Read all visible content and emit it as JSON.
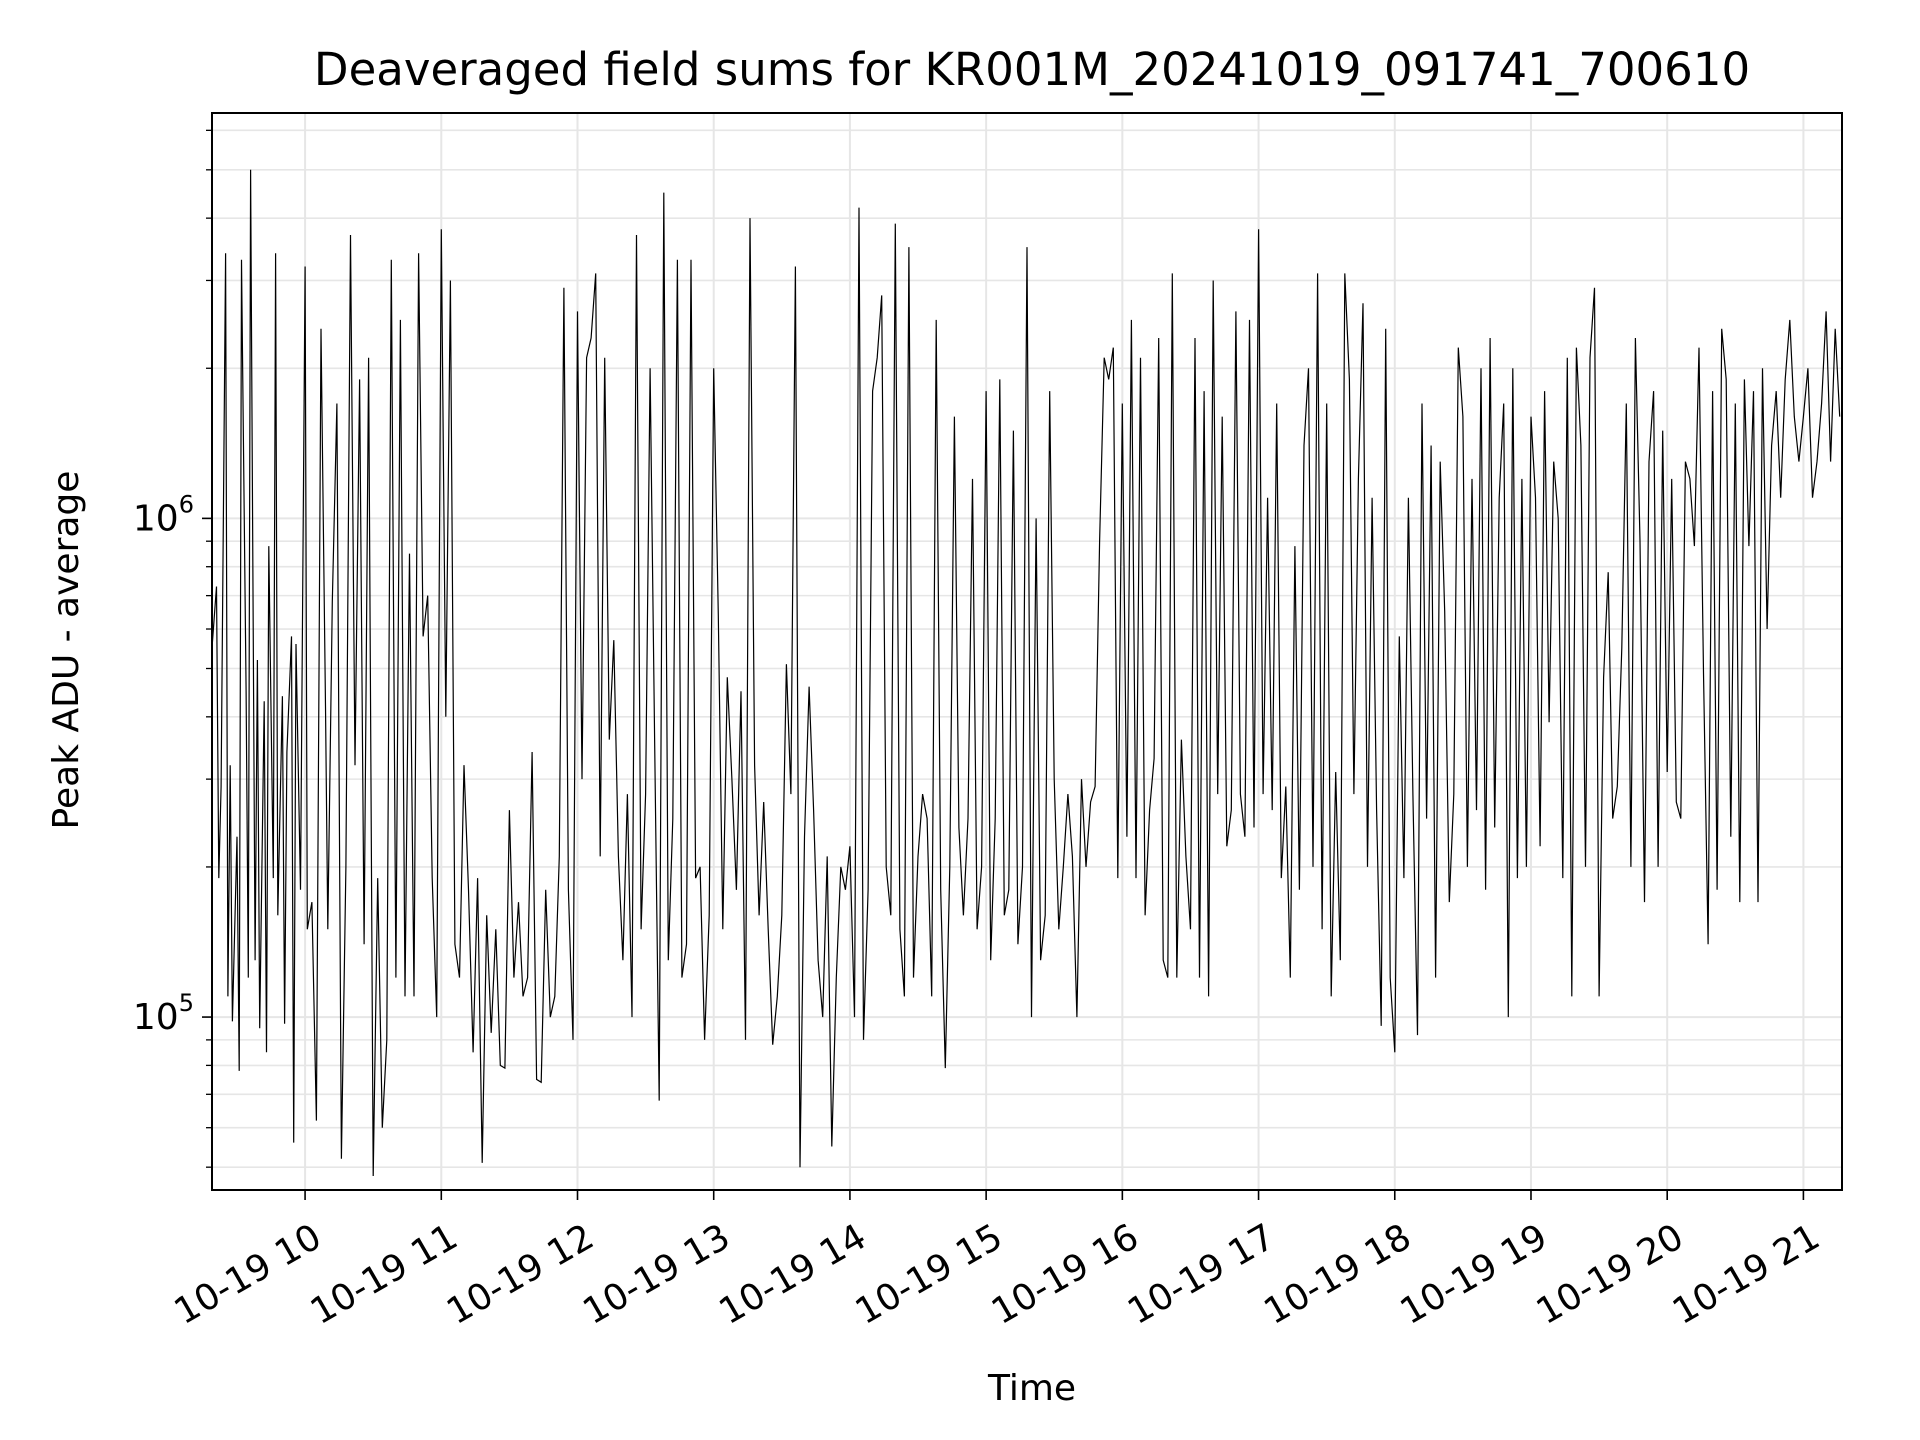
{
  "chart_data": {
    "type": "line",
    "title": "Deaveraged field sums for KR001M_20241019_091741_700610",
    "xlabel": "Time",
    "ylabel": "Peak ADU - average",
    "y_scale": "log",
    "grid": true,
    "legend": "none",
    "line_color": "#000000",
    "grid_color": "#e6e6e6",
    "xlim": [
      "2024-10-19 09:19",
      "2024-10-19 21:17"
    ],
    "ylim": [
      45000,
      6500000
    ],
    "x_ticks": [
      {
        "value": "2024-10-19 10:00",
        "label": "10-19 10"
      },
      {
        "value": "2024-10-19 11:00",
        "label": "10-19 11"
      },
      {
        "value": "2024-10-19 12:00",
        "label": "10-19 12"
      },
      {
        "value": "2024-10-19 13:00",
        "label": "10-19 13"
      },
      {
        "value": "2024-10-19 14:00",
        "label": "10-19 14"
      },
      {
        "value": "2024-10-19 15:00",
        "label": "10-19 15"
      },
      {
        "value": "2024-10-19 16:00",
        "label": "10-19 16"
      },
      {
        "value": "2024-10-19 17:00",
        "label": "10-19 17"
      },
      {
        "value": "2024-10-19 18:00",
        "label": "10-19 18"
      },
      {
        "value": "2024-10-19 19:00",
        "label": "10-19 19"
      },
      {
        "value": "2024-10-19 20:00",
        "label": "10-19 20"
      },
      {
        "value": "2024-10-19 21:00",
        "label": "10-19 21"
      }
    ],
    "y_ticks": [
      {
        "value": 100000,
        "base": "10",
        "exp": "5"
      },
      {
        "value": 1000000,
        "base": "10",
        "exp": "6"
      }
    ],
    "series": [
      {
        "x": [
          "2024-10-19 09:19",
          "2024-10-19 09:21",
          "2024-10-19 09:22",
          "2024-10-19 09:23",
          "2024-10-19 09:25",
          "2024-10-19 09:26",
          "2024-10-19 09:27",
          "2024-10-19 09:28",
          "2024-10-19 09:30",
          "2024-10-19 09:31",
          "2024-10-19 09:32",
          "2024-10-19 09:34",
          "2024-10-19 09:35",
          "2024-10-19 09:36",
          "2024-10-19 09:38",
          "2024-10-19 09:39",
          "2024-10-19 09:40",
          "2024-10-19 09:42",
          "2024-10-19 09:43",
          "2024-10-19 09:44",
          "2024-10-19 09:46",
          "2024-10-19 09:47",
          "2024-10-19 09:48",
          "2024-10-19 09:50",
          "2024-10-19 09:51",
          "2024-10-19 09:52",
          "2024-10-19 09:54",
          "2024-10-19 09:55",
          "2024-10-19 09:56",
          "2024-10-19 09:58",
          "2024-10-19 10:00",
          "2024-10-19 10:01",
          "2024-10-19 10:03",
          "2024-10-19 10:05",
          "2024-10-19 10:07",
          "2024-10-19 10:09",
          "2024-10-19 10:10",
          "2024-10-19 10:12",
          "2024-10-19 10:14",
          "2024-10-19 10:16",
          "2024-10-19 10:18",
          "2024-10-19 10:20",
          "2024-10-19 10:22",
          "2024-10-19 10:24",
          "2024-10-19 10:26",
          "2024-10-19 10:28",
          "2024-10-19 10:30",
          "2024-10-19 10:32",
          "2024-10-19 10:34",
          "2024-10-19 10:36",
          "2024-10-19 10:38",
          "2024-10-19 10:40",
          "2024-10-19 10:42",
          "2024-10-19 10:44",
          "2024-10-19 10:46",
          "2024-10-19 10:48",
          "2024-10-19 10:50",
          "2024-10-19 10:52",
          "2024-10-19 10:54",
          "2024-10-19 10:56",
          "2024-10-19 10:58",
          "2024-10-19 11:00",
          "2024-10-19 11:02",
          "2024-10-19 11:04",
          "2024-10-19 11:06",
          "2024-10-19 11:08",
          "2024-10-19 11:10",
          "2024-10-19 11:12",
          "2024-10-19 11:14",
          "2024-10-19 11:16",
          "2024-10-19 11:18",
          "2024-10-19 11:20",
          "2024-10-19 11:22",
          "2024-10-19 11:24",
          "2024-10-19 11:26",
          "2024-10-19 11:28",
          "2024-10-19 11:30",
          "2024-10-19 11:32",
          "2024-10-19 11:34",
          "2024-10-19 11:36",
          "2024-10-19 11:38",
          "2024-10-19 11:40",
          "2024-10-19 11:42",
          "2024-10-19 11:44",
          "2024-10-19 11:46",
          "2024-10-19 11:48",
          "2024-10-19 11:50",
          "2024-10-19 11:52",
          "2024-10-19 11:54",
          "2024-10-19 11:56",
          "2024-10-19 11:58",
          "2024-10-19 12:00",
          "2024-10-19 12:02",
          "2024-10-19 12:04",
          "2024-10-19 12:06",
          "2024-10-19 12:08",
          "2024-10-19 12:10",
          "2024-10-19 12:12",
          "2024-10-19 12:14",
          "2024-10-19 12:16",
          "2024-10-19 12:18",
          "2024-10-19 12:20",
          "2024-10-19 12:22",
          "2024-10-19 12:24",
          "2024-10-19 12:26",
          "2024-10-19 12:28",
          "2024-10-19 12:30",
          "2024-10-19 12:32",
          "2024-10-19 12:34",
          "2024-10-19 12:36",
          "2024-10-19 12:38",
          "2024-10-19 12:40",
          "2024-10-19 12:42",
          "2024-10-19 12:44",
          "2024-10-19 12:46",
          "2024-10-19 12:48",
          "2024-10-19 12:50",
          "2024-10-19 12:52",
          "2024-10-19 12:54",
          "2024-10-19 12:56",
          "2024-10-19 12:58",
          "2024-10-19 13:00",
          "2024-10-19 13:02",
          "2024-10-19 13:04",
          "2024-10-19 13:06",
          "2024-10-19 13:08",
          "2024-10-19 13:10",
          "2024-10-19 13:12",
          "2024-10-19 13:14",
          "2024-10-19 13:16",
          "2024-10-19 13:18",
          "2024-10-19 13:20",
          "2024-10-19 13:22",
          "2024-10-19 13:24",
          "2024-10-19 13:26",
          "2024-10-19 13:28",
          "2024-10-19 13:30",
          "2024-10-19 13:32",
          "2024-10-19 13:34",
          "2024-10-19 13:36",
          "2024-10-19 13:38",
          "2024-10-19 13:40",
          "2024-10-19 13:42",
          "2024-10-19 13:44",
          "2024-10-19 13:46",
          "2024-10-19 13:48",
          "2024-10-19 13:50",
          "2024-10-19 13:52",
          "2024-10-19 13:54",
          "2024-10-19 13:56",
          "2024-10-19 13:58",
          "2024-10-19 14:00",
          "2024-10-19 14:02",
          "2024-10-19 14:04",
          "2024-10-19 14:06",
          "2024-10-19 14:08",
          "2024-10-19 14:10",
          "2024-10-19 14:12",
          "2024-10-19 14:14",
          "2024-10-19 14:16",
          "2024-10-19 14:18",
          "2024-10-19 14:20",
          "2024-10-19 14:22",
          "2024-10-19 14:24",
          "2024-10-19 14:26",
          "2024-10-19 14:28",
          "2024-10-19 14:30",
          "2024-10-19 14:32",
          "2024-10-19 14:34",
          "2024-10-19 14:36",
          "2024-10-19 14:38",
          "2024-10-19 14:40",
          "2024-10-19 14:42",
          "2024-10-19 14:44",
          "2024-10-19 14:46",
          "2024-10-19 14:48",
          "2024-10-19 14:50",
          "2024-10-19 14:52",
          "2024-10-19 14:54",
          "2024-10-19 14:56",
          "2024-10-19 14:58",
          "2024-10-19 15:00",
          "2024-10-19 15:02",
          "2024-10-19 15:04",
          "2024-10-19 15:06",
          "2024-10-19 15:08",
          "2024-10-19 15:10",
          "2024-10-19 15:12",
          "2024-10-19 15:14",
          "2024-10-19 15:16",
          "2024-10-19 15:18",
          "2024-10-19 15:20",
          "2024-10-19 15:22",
          "2024-10-19 15:24",
          "2024-10-19 15:26",
          "2024-10-19 15:28",
          "2024-10-19 15:30",
          "2024-10-19 15:32",
          "2024-10-19 15:34",
          "2024-10-19 15:36",
          "2024-10-19 15:38",
          "2024-10-19 15:40",
          "2024-10-19 15:42",
          "2024-10-19 15:44",
          "2024-10-19 15:46",
          "2024-10-19 15:48",
          "2024-10-19 15:50",
          "2024-10-19 15:52",
          "2024-10-19 15:54",
          "2024-10-19 15:56",
          "2024-10-19 15:58",
          "2024-10-19 16:00",
          "2024-10-19 16:02",
          "2024-10-19 16:04",
          "2024-10-19 16:06",
          "2024-10-19 16:08",
          "2024-10-19 16:10",
          "2024-10-19 16:12",
          "2024-10-19 16:14",
          "2024-10-19 16:16",
          "2024-10-19 16:18",
          "2024-10-19 16:20",
          "2024-10-19 16:22",
          "2024-10-19 16:24",
          "2024-10-19 16:26",
          "2024-10-19 16:28",
          "2024-10-19 16:30",
          "2024-10-19 16:32",
          "2024-10-19 16:34",
          "2024-10-19 16:36",
          "2024-10-19 16:38",
          "2024-10-19 16:40",
          "2024-10-19 16:42",
          "2024-10-19 16:44",
          "2024-10-19 16:46",
          "2024-10-19 16:48",
          "2024-10-19 16:50",
          "2024-10-19 16:52",
          "2024-10-19 16:54",
          "2024-10-19 16:56",
          "2024-10-19 16:58",
          "2024-10-19 17:00",
          "2024-10-19 17:02",
          "2024-10-19 17:04",
          "2024-10-19 17:06",
          "2024-10-19 17:08",
          "2024-10-19 17:10",
          "2024-10-19 17:12",
          "2024-10-19 17:14",
          "2024-10-19 17:16",
          "2024-10-19 17:18",
          "2024-10-19 17:20",
          "2024-10-19 17:22",
          "2024-10-19 17:24",
          "2024-10-19 17:26",
          "2024-10-19 17:28",
          "2024-10-19 17:30",
          "2024-10-19 17:32",
          "2024-10-19 17:34",
          "2024-10-19 17:36",
          "2024-10-19 17:38",
          "2024-10-19 17:40",
          "2024-10-19 17:42",
          "2024-10-19 17:44",
          "2024-10-19 17:46",
          "2024-10-19 17:48",
          "2024-10-19 17:50",
          "2024-10-19 17:52",
          "2024-10-19 17:54",
          "2024-10-19 17:56",
          "2024-10-19 17:58",
          "2024-10-19 18:00",
          "2024-10-19 18:02",
          "2024-10-19 18:04",
          "2024-10-19 18:06",
          "2024-10-19 18:08",
          "2024-10-19 18:10",
          "2024-10-19 18:12",
          "2024-10-19 18:14",
          "2024-10-19 18:16",
          "2024-10-19 18:18",
          "2024-10-19 18:20",
          "2024-10-19 18:22",
          "2024-10-19 18:24",
          "2024-10-19 18:26",
          "2024-10-19 18:28",
          "2024-10-19 18:30",
          "2024-10-19 18:32",
          "2024-10-19 18:34",
          "2024-10-19 18:36",
          "2024-10-19 18:38",
          "2024-10-19 18:40",
          "2024-10-19 18:42",
          "2024-10-19 18:44",
          "2024-10-19 18:46",
          "2024-10-19 18:48",
          "2024-10-19 18:50",
          "2024-10-19 18:52",
          "2024-10-19 18:54",
          "2024-10-19 18:56",
          "2024-10-19 18:58",
          "2024-10-19 19:00",
          "2024-10-19 19:02",
          "2024-10-19 19:04",
          "2024-10-19 19:06",
          "2024-10-19 19:08",
          "2024-10-19 19:10",
          "2024-10-19 19:12",
          "2024-10-19 19:14",
          "2024-10-19 19:16",
          "2024-10-19 19:18",
          "2024-10-19 19:20",
          "2024-10-19 19:22",
          "2024-10-19 19:24",
          "2024-10-19 19:26",
          "2024-10-19 19:28",
          "2024-10-19 19:30",
          "2024-10-19 19:32",
          "2024-10-19 19:34",
          "2024-10-19 19:36",
          "2024-10-19 19:38",
          "2024-10-19 19:40",
          "2024-10-19 19:42",
          "2024-10-19 19:44",
          "2024-10-19 19:46",
          "2024-10-19 19:48",
          "2024-10-19 19:50",
          "2024-10-19 19:52",
          "2024-10-19 19:54",
          "2024-10-19 19:56",
          "2024-10-19 19:58",
          "2024-10-19 20:00",
          "2024-10-19 20:02",
          "2024-10-19 20:04",
          "2024-10-19 20:06",
          "2024-10-19 20:08",
          "2024-10-19 20:10",
          "2024-10-19 20:12",
          "2024-10-19 20:14",
          "2024-10-19 20:16",
          "2024-10-19 20:18",
          "2024-10-19 20:20",
          "2024-10-19 20:22",
          "2024-10-19 20:24",
          "2024-10-19 20:26",
          "2024-10-19 20:28",
          "2024-10-19 20:30",
          "2024-10-19 20:32",
          "2024-10-19 20:34",
          "2024-10-19 20:36",
          "2024-10-19 20:38",
          "2024-10-19 20:40",
          "2024-10-19 20:42",
          "2024-10-19 20:44",
          "2024-10-19 20:46",
          "2024-10-19 20:48",
          "2024-10-19 20:50",
          "2024-10-19 20:52",
          "2024-10-19 20:54",
          "2024-10-19 20:56",
          "2024-10-19 20:58",
          "2024-10-19 21:00",
          "2024-10-19 21:02",
          "2024-10-19 21:04",
          "2024-10-19 21:06",
          "2024-10-19 21:08",
          "2024-10-19 21:10",
          "2024-10-19 21:12",
          "2024-10-19 21:14",
          "2024-10-19 21:16"
        ],
        "values": [
          550000,
          730000,
          190000,
          290000,
          3400000,
          110000,
          320000,
          98000,
          230000,
          78000,
          3300000,
          450000,
          120000,
          5000000,
          130000,
          520000,
          95000,
          430000,
          85000,
          880000,
          190000,
          3400000,
          160000,
          440000,
          97000,
          340000,
          580000,
          56000,
          560000,
          180000,
          3200000,
          150000,
          170000,
          62000,
          2400000,
          420000,
          150000,
          680000,
          1700000,
          52000,
          200000,
          3700000,
          320000,
          1900000,
          140000,
          2100000,
          48000,
          190000,
          60000,
          90000,
          3300000,
          120000,
          2500000,
          110000,
          850000,
          110000,
          3400000,
          580000,
          700000,
          190000,
          100000,
          3800000,
          400000,
          3000000,
          140000,
          120000,
          320000,
          180000,
          85000,
          190000,
          51000,
          160000,
          93000,
          150000,
          80000,
          79000,
          260000,
          120000,
          170000,
          110000,
          120000,
          340000,
          75000,
          74000,
          180000,
          100000,
          110000,
          210000,
          2900000,
          180000,
          90000,
          2600000,
          300000,
          2100000,
          2300000,
          3100000,
          210000,
          2100000,
          360000,
          570000,
          210000,
          130000,
          280000,
          100000,
          3700000,
          150000,
          280000,
          2000000,
          350000,
          68000,
          4500000,
          130000,
          250000,
          3300000,
          120000,
          140000,
          3300000,
          190000,
          200000,
          90000,
          160000,
          2000000,
          640000,
          150000,
          480000,
          300000,
          180000,
          450000,
          90000,
          4000000,
          320000,
          160000,
          270000,
          150000,
          88000,
          110000,
          160000,
          510000,
          280000,
          3200000,
          50000,
          230000,
          460000,
          260000,
          130000,
          100000,
          210000,
          55000,
          120000,
          200000,
          180000,
          220000,
          100000,
          4200000,
          90000,
          180000,
          1800000,
          2100000,
          2800000,
          200000,
          160000,
          3900000,
          150000,
          110000,
          3500000,
          120000,
          210000,
          280000,
          250000,
          110000,
          2500000,
          180000,
          79000,
          200000,
          1600000,
          240000,
          160000,
          250000,
          1200000,
          150000,
          200000,
          1800000,
          130000,
          250000,
          1900000,
          160000,
          180000,
          1500000,
          140000,
          200000,
          3500000,
          100000,
          1000000,
          130000,
          160000,
          1800000,
          300000,
          150000,
          200000,
          280000,
          210000,
          100000,
          300000,
          200000,
          270000,
          290000,
          900000,
          2100000,
          1900000,
          2200000,
          190000,
          1700000,
          230000,
          2500000,
          190000,
          2100000,
          160000,
          260000,
          330000,
          2300000,
          130000,
          120000,
          3100000,
          120000,
          360000,
          210000,
          150000,
          2300000,
          120000,
          1800000,
          110000,
          3000000,
          280000,
          1600000,
          220000,
          260000,
          2600000,
          280000,
          230000,
          2500000,
          240000,
          3800000,
          280000,
          1100000,
          260000,
          1700000,
          190000,
          290000,
          120000,
          880000,
          180000,
          1400000,
          2000000,
          200000,
          3100000,
          150000,
          1700000,
          110000,
          310000,
          130000,
          3100000,
          1900000,
          280000,
          1200000,
          2700000,
          200000,
          1100000,
          260000,
          96000,
          2400000,
          120000,
          85000,
          580000,
          190000,
          1100000,
          280000,
          92000,
          1700000,
          250000,
          1400000,
          120000,
          1300000,
          650000,
          170000,
          280000,
          2200000,
          1600000,
          200000,
          1200000,
          260000,
          2000000,
          180000,
          2300000,
          240000,
          1100000,
          1700000,
          100000,
          2000000,
          190000,
          1200000,
          200000,
          1600000,
          1100000,
          220000,
          1800000,
          390000,
          1300000,
          1000000,
          190000,
          2100000,
          110000,
          2200000,
          1400000,
          200000,
          2100000,
          2900000,
          110000,
          480000,
          780000,
          250000,
          290000,
          550000,
          1700000,
          200000,
          2300000,
          900000,
          170000,
          1300000,
          1800000,
          200000,
          1500000,
          310000,
          1200000,
          270000,
          250000,
          1300000,
          1200000,
          880000,
          2200000,
          490000,
          140000,
          1800000,
          180000,
          2400000,
          1900000,
          230000,
          1700000,
          170000,
          1900000,
          880000,
          1800000,
          170000,
          2000000,
          600000,
          1400000,
          1800000,
          1100000,
          1900000,
          2500000,
          1600000,
          1300000,
          1600000,
          2000000,
          1100000,
          1300000,
          1700000,
          2600000,
          1300000,
          2400000,
          1600000
        ]
      }
    ]
  }
}
